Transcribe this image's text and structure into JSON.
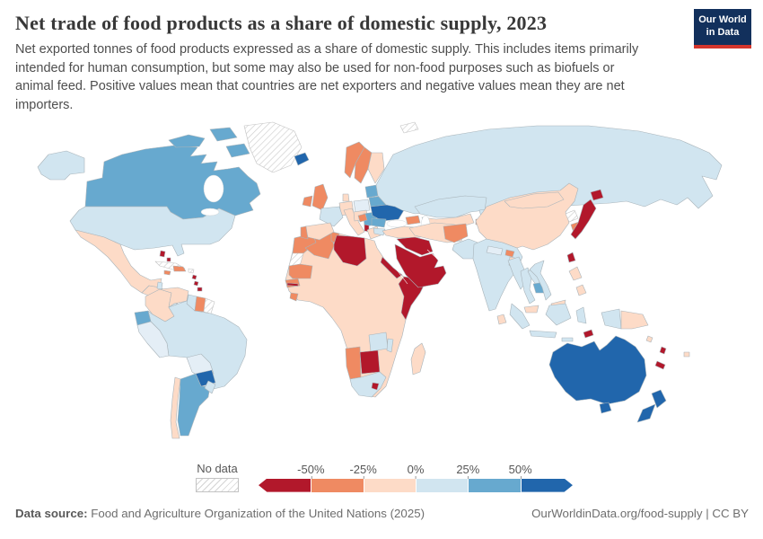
{
  "colors": {
    "logo_navy": "#12305C",
    "logo_red": "#D4352C",
    "map_stroke": "#a9b4ba"
  },
  "header": {
    "title": "Net trade of food products as a share of domestic supply, 2023",
    "subtitle": "Net exported tonnes of food products expressed as a share of domestic supply. This includes items primarily intended for human consumption, but some may also be used for non-food purposes such as biofuels or animal feed. Positive values mean that countries are net exporters and negative values mean they are net importers.",
    "logo": {
      "line1": "Our World",
      "line2": "in Data"
    }
  },
  "legend": {
    "no_data_label": "No data",
    "ticks": [
      "-50%",
      "-25%",
      "0%",
      "25%",
      "50%"
    ],
    "bin_colors": [
      "#b2182b",
      "#ef8a62",
      "#fddbc7",
      "#d1e5f0",
      "#67a9cf",
      "#2166ac"
    ]
  },
  "footer": {
    "source_label": "Data source:",
    "source_text": " Food and Agriculture Organization of the United Nations (2025)",
    "right_text": "OurWorldinData.org/food-supply | CC BY"
  },
  "chart_data": {
    "type": "choropleth_map",
    "title": "Net trade of food products as a share of domestic supply, 2023",
    "unit": "% of domestic supply",
    "legend_bins": [
      {
        "range": "-50% and below",
        "color": "#b2182b",
        "meaning": "large net importer"
      },
      {
        "range": "-50% to -25%",
        "color": "#ef8a62"
      },
      {
        "range": "-25% to 0%",
        "color": "#fddbc7"
      },
      {
        "range": "0% to 25%",
        "color": "#d1e5f0"
      },
      {
        "range": "25% to 50%",
        "color": "#67a9cf"
      },
      {
        "range": "50% and above",
        "color": "#2166ac",
        "meaning": "large net exporter"
      },
      {
        "range": "No data",
        "color": "hatched-white"
      }
    ],
    "countries_by_category": {
      "50_plus_strong_net_exporter": [
        "Australia",
        "New Zealand",
        "Ukraine",
        "Paraguay",
        "Iceland"
      ],
      "25_to_50": [
        "Canada",
        "Argentina",
        "Ecuador",
        "Estonia",
        "Latvia",
        "Lithuania",
        "Belarus",
        "Romania",
        "Hungary",
        "Serbia",
        "Cambodia"
      ],
      "0_to_25": [
        "United States",
        "Brazil",
        "Russia",
        "Kazakhstan",
        "India",
        "Pakistan",
        "Myanmar",
        "Thailand",
        "Laos",
        "Vietnam",
        "Indonesia",
        "France",
        "Bulgaria",
        "Poland",
        "Peru",
        "Bolivia",
        "Uruguay",
        "Guyana",
        "South Africa",
        "Zambia",
        "Malawi",
        "Nepal",
        "Kyrgyzstan",
        "Belize",
        "Costa Rica"
      ],
      "minus25_to_0": [
        "Mexico",
        "China",
        "Mongolia",
        "Iran",
        "Turkey",
        "Germany",
        "Italy",
        "Spain",
        "Greece",
        "Finland",
        "Denmark",
        "Colombia",
        "Venezuela",
        "Chile",
        "Egypt",
        "Ethiopia",
        "Mali",
        "Niger",
        "Chad",
        "Sudan",
        "Nigeria",
        "Angola",
        "Zimbabwe",
        "Mozambique",
        "Madagascar",
        "Kenya",
        "Tanzania",
        "Philippines",
        "Malaysia",
        "Papua New Guinea",
        "Sri Lanka",
        "Bangladesh",
        "Fiji",
        "Uzbekistan",
        "Turkmenistan"
      ],
      "minus50_to_minus25": [
        "Norway",
        "Sweden",
        "United Kingdom",
        "Ireland",
        "Portugal",
        "Morocco",
        "Algeria",
        "Tunisia",
        "Mauritania",
        "Senegal",
        "Sierra Leone",
        "Namibia",
        "Afghanistan",
        "South Korea",
        "Suriname",
        "Haiti",
        "Dominican Republic",
        "Jamaica",
        "Croatia",
        "Armenia",
        "Azerbaijan",
        "Tajikistan",
        "Bhutan"
      ],
      "minus50_and_below": [
        "Japan",
        "Taiwan",
        "Saudi Arabia",
        "Iraq",
        "Syria",
        "Jordan",
        "Yemen",
        "Oman",
        "Libya",
        "Somalia",
        "Djibouti",
        "Eritrea",
        "Botswana",
        "Lesotho",
        "Albania",
        "Bahamas",
        "Trinidad and Tobago",
        "Timor-Leste",
        "New Caledonia",
        "Vanuatu",
        "Gambia"
      ],
      "no_data": [
        "Greenland",
        "Cuba",
        "Puerto Rico",
        "French Guiana",
        "Western Sahara",
        "North Korea",
        "Svalbard"
      ]
    }
  }
}
